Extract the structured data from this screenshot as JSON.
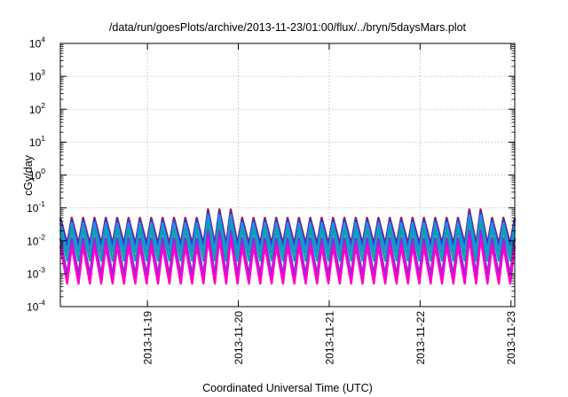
{
  "chart_data": {
    "type": "line",
    "title": "/data/run/goesPlots/archive/2013-11-23/01:00/flux/../bryn/5daysMars.plot",
    "xlabel": "Coordinated Universal Time (UTC)",
    "ylabel": "cGy/day",
    "yscale": "log",
    "ylim": [
      0.0001,
      10000
    ],
    "xlim": [
      "2013-11-18 01:00",
      "2013-11-23 01:00"
    ],
    "x_ticks": [
      {
        "value": "2013-11-19 00:00",
        "label": "2013-11-19"
      },
      {
        "value": "2013-11-20 00:00",
        "label": "2013-11-20"
      },
      {
        "value": "2013-11-21 00:00",
        "label": "2013-11-21"
      },
      {
        "value": "2013-11-22 00:00",
        "label": "2013-11-22"
      },
      {
        "value": "2013-11-23 00:00",
        "label": "2013-11-23"
      }
    ],
    "y_ticks": [
      {
        "base": "10",
        "exp": "4",
        "value": 10000
      },
      {
        "base": "10",
        "exp": "3",
        "value": 1000
      },
      {
        "base": "10",
        "exp": "2",
        "value": 100
      },
      {
        "base": "10",
        "exp": "1",
        "value": 10
      },
      {
        "base": "10",
        "exp": "0",
        "value": 1
      },
      {
        "base": "10",
        "exp": "-1",
        "value": 0.1
      },
      {
        "base": "10",
        "exp": "-2",
        "value": 0.01
      },
      {
        "base": "10",
        "exp": "-3",
        "value": 0.001
      },
      {
        "base": "10",
        "exp": "-4",
        "value": 0.0001
      }
    ],
    "grid": true,
    "oscillation": {
      "period_hours": 3,
      "first_peak": "2013-11-18 01:00",
      "enhanced_window_1": [
        "2013-11-19 14:00",
        "2013-11-19 22:00"
      ],
      "enhanced_window_2": [
        "2013-11-22 11:00",
        "2013-11-22 18:00"
      ]
    },
    "series": [
      {
        "color": "#e00000",
        "peak": 0.05,
        "trough": 0.008,
        "peak_enhanced": 0.09
      },
      {
        "color": "#1f3fd0",
        "peak": 0.045,
        "trough": 0.007,
        "peak_enhanced": 0.08
      },
      {
        "color": "#2a8ae8",
        "peak": 0.035,
        "trough": 0.0045,
        "peak_enhanced": 0.06
      },
      {
        "color": "#00a8a8",
        "peak": 0.022,
        "trough": 0.0025,
        "peak_enhanced": 0.035
      },
      {
        "color": "#8a2be2",
        "peak": 0.012,
        "trough": 0.0009,
        "peak_enhanced": 0.02
      },
      {
        "color": "#ff00cc",
        "peak": 0.007,
        "trough": 0.0005,
        "peak_enhanced": 0.012
      }
    ]
  }
}
